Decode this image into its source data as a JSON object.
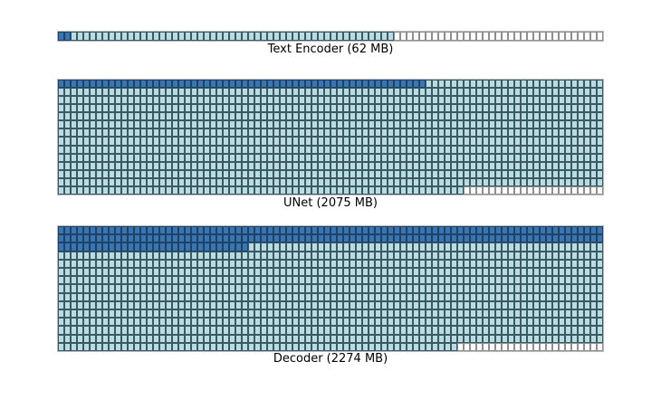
{
  "figure": {
    "background": "#ffffff"
  },
  "colors": {
    "dark_fill": "#3a75b0",
    "dark_border": "#1d4268",
    "light_fill": "#b7dde3",
    "light_border": "#3e5863",
    "empty_fill": "#ffffff",
    "empty_border": "#8e8e8e"
  },
  "chart_data": [
    {
      "name": "text-encoder",
      "type": "heatmap",
      "title": "Text Encoder (62 MB)",
      "size_mb": 62,
      "grid_rows": 1,
      "grid_cols": 86,
      "legend": null,
      "cell_runs": [
        {
          "value": "dark",
          "count": 2
        },
        {
          "value": "light",
          "count": 51
        },
        {
          "value": "empty",
          "count": 33
        }
      ]
    },
    {
      "name": "unet",
      "type": "heatmap",
      "title": "UNet (2075 MB)",
      "size_mb": 2075,
      "grid_rows": 14,
      "grid_cols": 86,
      "legend": null,
      "cell_runs": [
        {
          "value": "dark",
          "count": 58
        },
        {
          "value": "light",
          "count": 1124
        },
        {
          "value": "empty",
          "count": 22
        }
      ]
    },
    {
      "name": "decoder",
      "type": "heatmap",
      "title": "Decoder (2274 MB)",
      "size_mb": 2274,
      "grid_rows": 15,
      "grid_cols": 86,
      "legend": null,
      "cell_runs": [
        {
          "value": "dark",
          "count": 202
        },
        {
          "value": "light",
          "count": 1065
        },
        {
          "value": "empty",
          "count": 23
        }
      ]
    }
  ]
}
